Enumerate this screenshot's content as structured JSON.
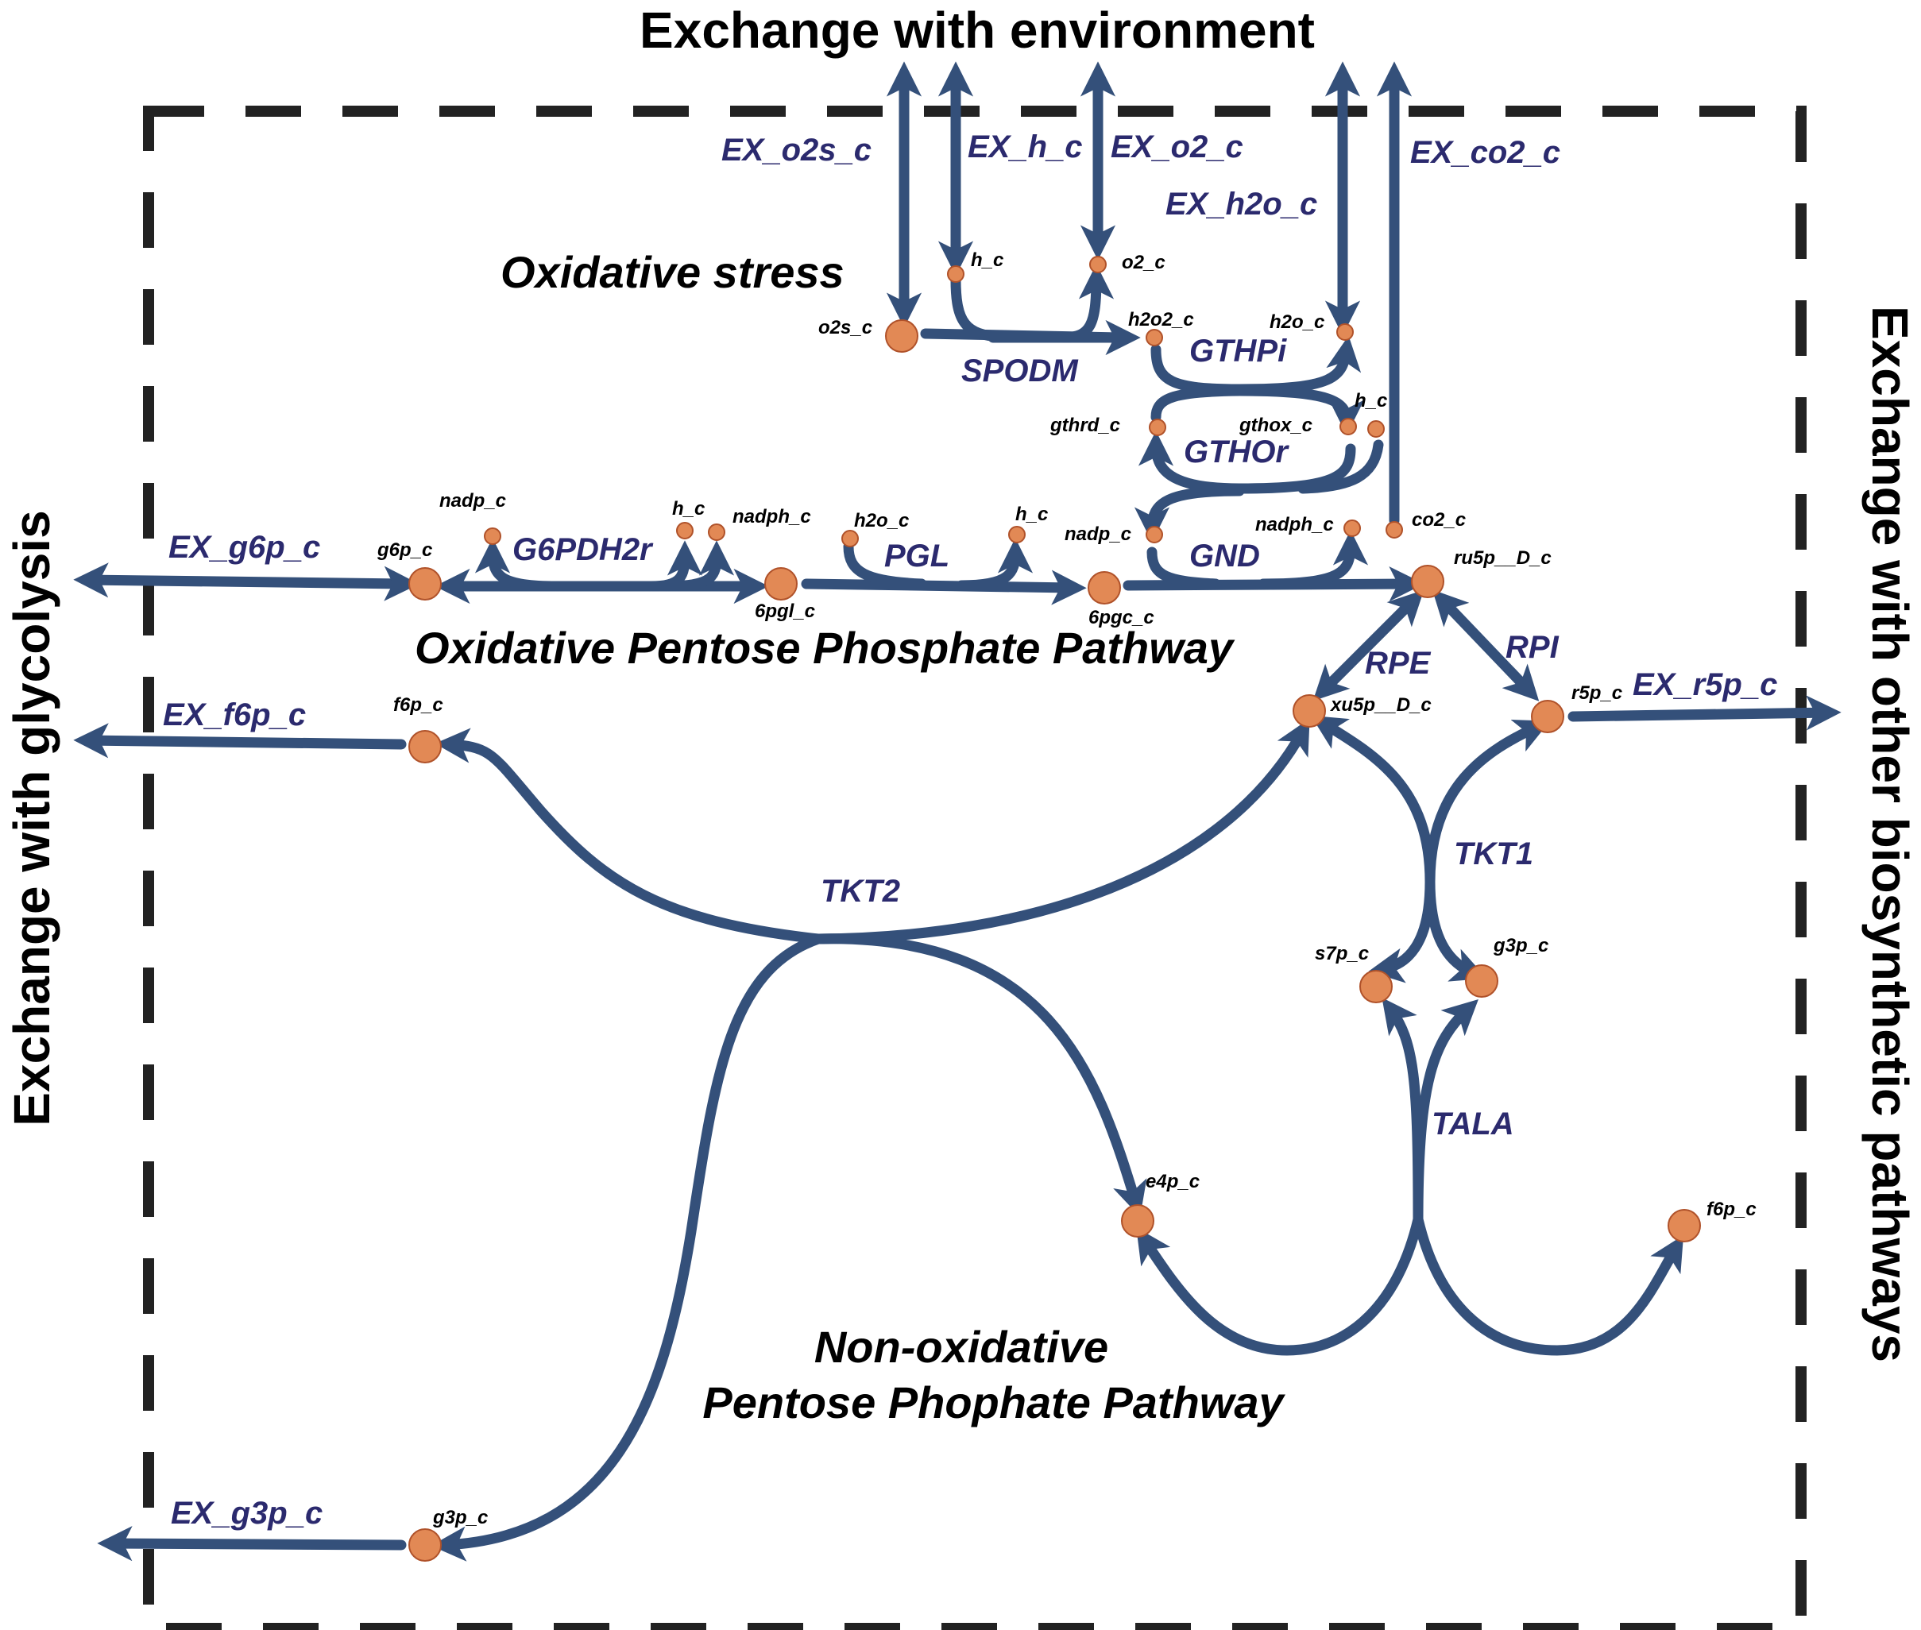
{
  "colors": {
    "flux": "#34507a",
    "metabolite_fill": "#e28955",
    "metabolite_stroke": "#b0522a",
    "reaction_label": "#2b2a6e",
    "compartment_border": "#222222"
  },
  "titles": {
    "top": "Exchange with environment",
    "left": "Exchange with glycolysis",
    "right": "Exchange with other biosynthetic pathways"
  },
  "regions": {
    "oxidative_stress": "Oxidative stress",
    "oxidative_ppp": "Oxidative Pentose Phosphate Pathway",
    "non_oxidative_line1": "Non-oxidative",
    "non_oxidative_line2": "Pentose Phophate Pathway"
  },
  "reactions": {
    "EX_o2s_c": "EX_o2s_c",
    "EX_h_c": "EX_h_c",
    "EX_o2_c": "EX_o2_c",
    "EX_h2o_c": "EX_h2o_c",
    "EX_co2_c": "EX_co2_c",
    "EX_g6p_c": "EX_g6p_c",
    "EX_f6p_c": "EX_f6p_c",
    "EX_g3p_c": "EX_g3p_c",
    "EX_r5p_c": "EX_r5p_c",
    "SPODM": "SPODM",
    "GTHPi": "GTHPi",
    "GTHOr": "GTHOr",
    "G6PDH2r": "G6PDH2r",
    "PGL": "PGL",
    "GND": "GND",
    "RPE": "RPE",
    "RPI": "RPI",
    "TKT1": "TKT1",
    "TKT2": "TKT2",
    "TALA": "TALA"
  },
  "metabolites": {
    "o2s_c": "o2s_c",
    "h_c_top": "h_c",
    "o2_c": "o2_c",
    "h2o2_c": "h2o2_c",
    "h2o_c_top": "h2o_c",
    "gthrd_c": "gthrd_c",
    "gthox_c": "gthox_c",
    "h_c_gthor": "h_c",
    "nadp_c_g6p": "nadp_c",
    "h_c_g6p": "h_c",
    "nadph_c_g6p": "nadph_c",
    "g6p_c": "g6p_c",
    "6pgl_c": "6pgl_c",
    "h2o_c_pgl": "h2o_c",
    "h_c_pgl": "h_c",
    "nadp_c_gnd": "nadp_c",
    "6pgc_c": "6pgc_c",
    "nadph_c_gnd": "nadph_c",
    "co2_c": "co2_c",
    "ru5p__D_c": "ru5p__D_c",
    "xu5p__D_c": "xu5p__D_c",
    "r5p_c": "r5p_c",
    "f6p_c_left": "f6p_c",
    "s7p_c": "s7p_c",
    "g3p_c_right": "g3p_c",
    "e4p_c": "e4p_c",
    "f6p_c_right": "f6p_c",
    "g3p_c_left": "g3p_c"
  }
}
